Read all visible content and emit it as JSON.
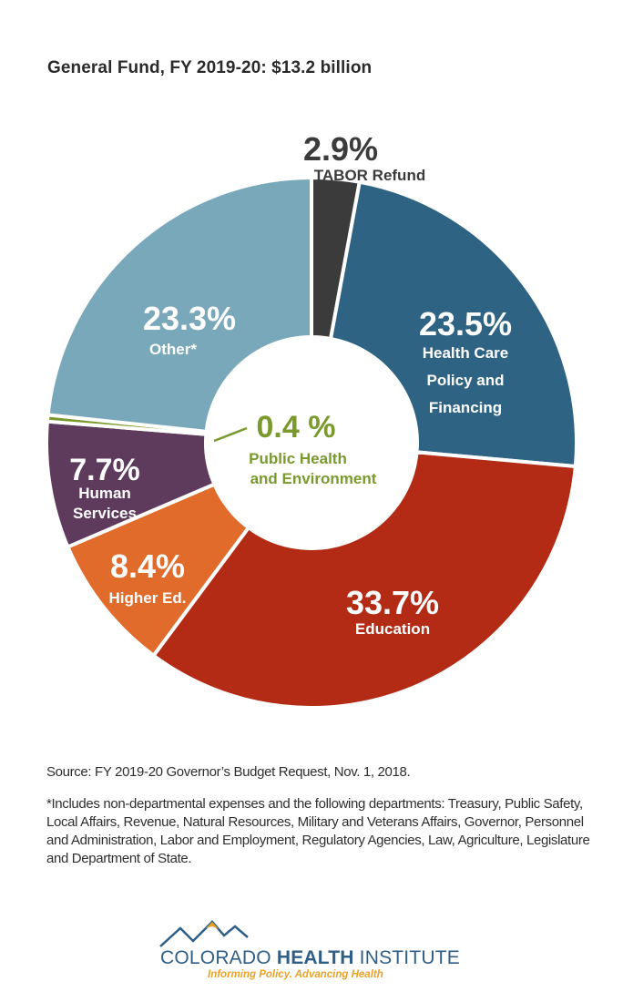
{
  "title": "General Fund, FY 2019-20: $13.2 billion",
  "chart_data": {
    "type": "pie",
    "title": "General Fund, FY 2019-20: $13.2 billion",
    "donut": true,
    "slices": [
      {
        "label": "TABOR Refund",
        "value": 2.9,
        "value_label": "2.9%",
        "color": "#3b3b3b"
      },
      {
        "label": "Health Care Policy and Financing",
        "value": 23.5,
        "value_label": "23.5%",
        "color": "#2e6383"
      },
      {
        "label": "Education",
        "value": 33.7,
        "value_label": "33.7%",
        "color": "#b32b14"
      },
      {
        "label": "Higher Ed.",
        "value": 8.4,
        "value_label": "8.4%",
        "color": "#e06b2b"
      },
      {
        "label": "Human Services",
        "value": 7.7,
        "value_label": "7.7%",
        "color": "#5e3a5c"
      },
      {
        "label": "Public Health and Environment",
        "value": 0.4,
        "value_label": "0.4 %",
        "color": "#7a9a2e"
      },
      {
        "label": "Other*",
        "value": 23.3,
        "value_label": "23.3%",
        "color": "#7aa8bb"
      }
    ]
  },
  "labels": {
    "tabor": {
      "pct": "2.9%",
      "name": "TABOR Refund"
    },
    "hcpf": {
      "pct": "23.5%",
      "lines": [
        "Health Care",
        "Policy and",
        "Financing"
      ]
    },
    "education": {
      "pct": "33.7%",
      "name": "Education"
    },
    "higher_ed": {
      "pct": "8.4%",
      "name": "Higher Ed."
    },
    "human_services": {
      "pct": "7.7%",
      "lines": [
        "Human",
        "Services"
      ]
    },
    "public_health": {
      "pct": "0.4 %",
      "lines": [
        "Public Health",
        "and Environment"
      ]
    },
    "other": {
      "pct": "23.3%",
      "name": "Other*"
    }
  },
  "source": "Source: FY 2019-20 Governor’s Budget Request, Nov. 1, 2018.",
  "footnote": "*Includes non-departmental expenses and the following departments: Treasury, Public Safety, Local Affairs, Revenue, Natural Resources, Military and Veterans Affairs, Governor, Personnel and Administration, Labor and Employment, Regulatory Agencies, Law, Agriculture, Legislature and Department of State.",
  "logo": {
    "name_regular": "COLORADO ",
    "name_bold": "HEALTH",
    "name_end": " INSTITUTE",
    "tagline": "Informing Policy. Advancing Health",
    "mountain_color": "#2f5f87",
    "peak_color": "#e9a227"
  }
}
